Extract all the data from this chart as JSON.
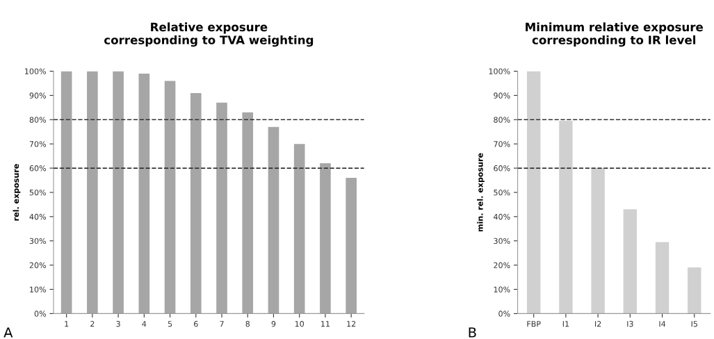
{
  "chart_data": [
    {
      "type": "bar",
      "title": "Relative exposure\ncorresponding to TVA weighting",
      "ylabel": "rel. exposure",
      "categories": [
        "1",
        "2",
        "3",
        "4",
        "5",
        "6",
        "7",
        "8",
        "9",
        "10",
        "11",
        "12"
      ],
      "values": [
        100,
        100,
        100,
        99,
        96,
        91,
        87,
        83,
        77,
        70,
        62,
        56
      ],
      "color": "#a6a6a6",
      "ylim": [
        0,
        100
      ],
      "yticks": [
        {
          "value": 0,
          "label": "0%"
        },
        {
          "value": 10,
          "label": "10%"
        },
        {
          "value": 20,
          "label": "20%"
        },
        {
          "value": 30,
          "label": "30%"
        },
        {
          "value": 40,
          "label": "40%"
        },
        {
          "value": 50,
          "label": "50%"
        },
        {
          "value": 60,
          "label": "60%"
        },
        {
          "value": 70,
          "label": "70%"
        },
        {
          "value": 80,
          "label": "80%"
        },
        {
          "value": 90,
          "label": "90%"
        },
        {
          "value": 100,
          "label": "100%"
        }
      ],
      "ref_lines": [
        {
          "axis": "y",
          "value": 80,
          "color": "#333333",
          "line_style": "dashed"
        },
        {
          "axis": "y",
          "value": 60,
          "color": "#333333",
          "line_style": "dashed"
        }
      ],
      "annotations": [
        "A"
      ],
      "grid": false,
      "legend": false
    },
    {
      "type": "bar",
      "title": "Minimum relative exposure\ncorresponding to IR level",
      "ylabel": "min. rel. exposure",
      "categories": [
        "FBP",
        "I1",
        "I2",
        "I3",
        "I4",
        "I5"
      ],
      "values": [
        100,
        79.5,
        60,
        43,
        29.5,
        19
      ],
      "color": "#d0d0d0",
      "ylim": [
        0,
        100
      ],
      "yticks": [
        {
          "value": 0,
          "label": "0%"
        },
        {
          "value": 10,
          "label": "10%"
        },
        {
          "value": 20,
          "label": "20%"
        },
        {
          "value": 30,
          "label": "30%"
        },
        {
          "value": 40,
          "label": "40%"
        },
        {
          "value": 50,
          "label": "50%"
        },
        {
          "value": 60,
          "label": "60%"
        },
        {
          "value": 70,
          "label": "70%"
        },
        {
          "value": 80,
          "label": "80%"
        },
        {
          "value": 90,
          "label": "90%"
        },
        {
          "value": 100,
          "label": "100%"
        }
      ],
      "ref_lines": [
        {
          "axis": "y",
          "value": 80,
          "color": "#333333",
          "line_style": "dashed"
        },
        {
          "axis": "y",
          "value": 60,
          "color": "#333333",
          "line_style": "dashed"
        }
      ],
      "annotations": [
        "B"
      ],
      "grid": false,
      "legend": false
    }
  ]
}
